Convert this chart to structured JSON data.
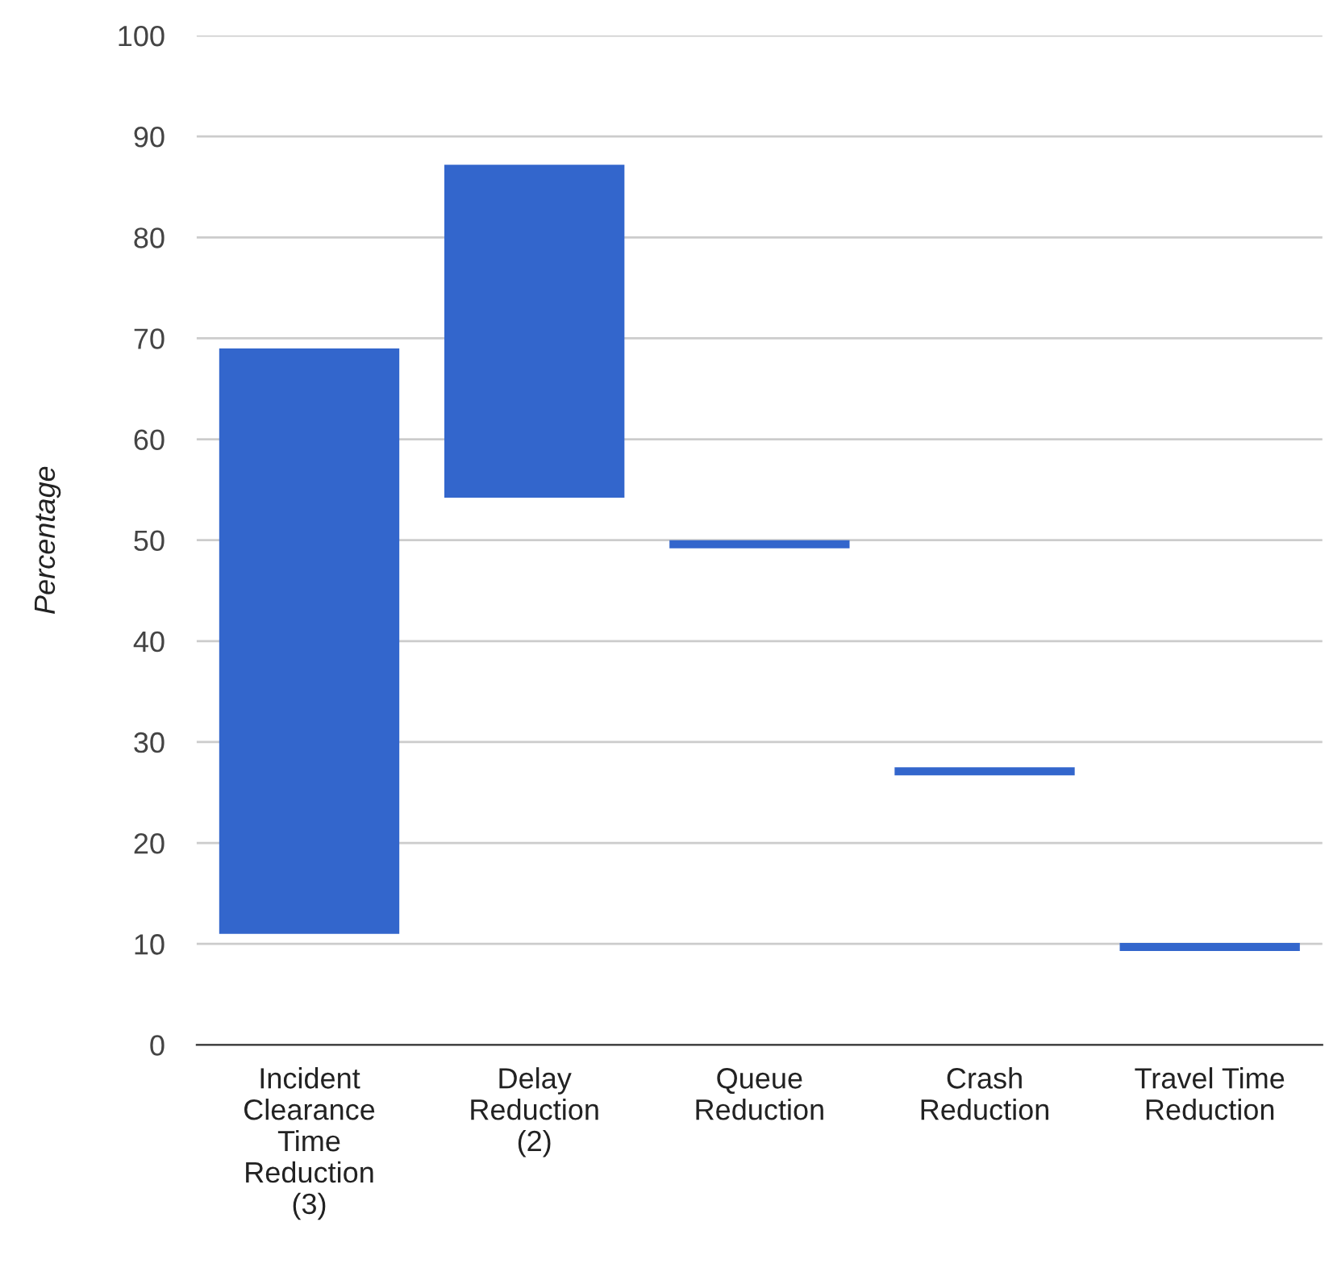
{
  "chart_data": {
    "type": "bar",
    "ylabel": "Percentage",
    "categories": [
      "Incident\nClearance\nTime\nReduction\n(3)",
      "Delay\nReduction\n(2)",
      "Queue\nReduction",
      "Crash\nReduction",
      "Travel Time\nReduction"
    ],
    "base": [
      11,
      54.2,
      49.2,
      26.7,
      9.3
    ],
    "values": [
      58,
      33,
      0.8,
      0.8,
      0.8
    ],
    "color": "#3366cc",
    "ylim": [
      0,
      100
    ],
    "yticks": [
      0,
      10,
      20,
      30,
      40,
      50,
      60,
      70,
      80,
      90,
      100
    ],
    "grid": "y"
  }
}
